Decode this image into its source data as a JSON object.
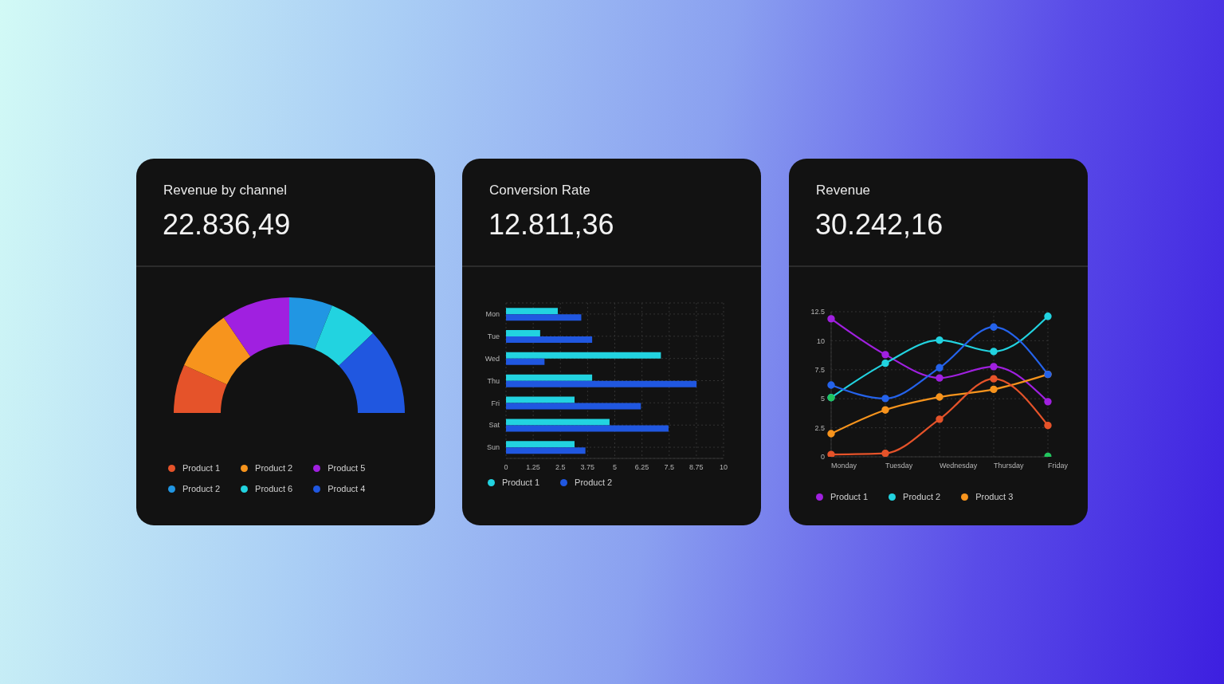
{
  "chart_data": [
    {
      "type": "donut",
      "title": "Revenue by channel",
      "subtitle": "22.836,49",
      "categories": [
        "Product 1",
        "Product 2",
        "Product 5",
        "Product 2",
        "Product 6",
        "Product 4"
      ],
      "values": [
        13.6,
        17.2,
        19.2,
        12.1,
        13.7,
        24.2
      ],
      "colors": [
        "#e5532a",
        "#f7941d",
        "#a020e0",
        "#2196e3",
        "#22d3e0",
        "#2057e0"
      ],
      "legend": "bottom"
    },
    {
      "type": "bar",
      "orientation": "horizontal",
      "title": "Conversion Rate",
      "subtitle": "12.811,36",
      "categories": [
        "Mon",
        "Tue",
        "Wed",
        "Thu",
        "Fri",
        "Sat",
        "Sun"
      ],
      "series": [
        {
          "name": "Product 1",
          "color": "#22d3e0",
          "values": [
            2.38,
            1.57,
            7.12,
            3.96,
            3.15,
            4.76,
            3.15
          ]
        },
        {
          "name": "Product 2",
          "color": "#2057e0",
          "values": [
            3.46,
            3.96,
            1.77,
            8.76,
            6.2,
            7.47,
            3.65
          ]
        }
      ],
      "xlim": [
        0,
        10
      ],
      "xticks": [
        0,
        1.25,
        2.5,
        3.75,
        5,
        6.25,
        7.5,
        8.75,
        10
      ],
      "grid": true,
      "legend": "bottom"
    },
    {
      "type": "line",
      "title": "Revenue",
      "subtitle": "30.242,16",
      "categories": [
        "Monday",
        "Tuesday",
        "Wednesday",
        "Thursday",
        "Friday"
      ],
      "series": [
        {
          "name": "Product 1",
          "color": "#a020e0",
          "values": [
            11.89,
            8.8,
            6.79,
            7.77,
            4.75
          ]
        },
        {
          "name": "Product 2",
          "color": "#22d3e0",
          "values": [
            5.1,
            8.06,
            10.05,
            9.07,
            12.1
          ]
        },
        {
          "name": "Product 3",
          "color": "#f7941d",
          "values": [
            1.99,
            4.04,
            5.15,
            5.81,
            7.1
          ]
        },
        {
          "color": "#2563eb",
          "values": [
            6.18,
            5.02,
            7.67,
            11.18,
            7.1
          ]
        },
        {
          "color": "#e5532a",
          "values": [
            0.2,
            0.3,
            3.24,
            6.72,
            2.7
          ]
        },
        {
          "type": "scatter",
          "color": "#22c55e",
          "x": [
            "Monday",
            "Friday"
          ],
          "values": [
            5.1,
            0.05
          ]
        }
      ],
      "ylim": [
        0,
        12.5
      ],
      "yticks": [
        0,
        2.5,
        5,
        7.5,
        10,
        12.5
      ],
      "grid": true,
      "marker": "circle",
      "line_style": "solid",
      "legend": "bottom"
    }
  ]
}
